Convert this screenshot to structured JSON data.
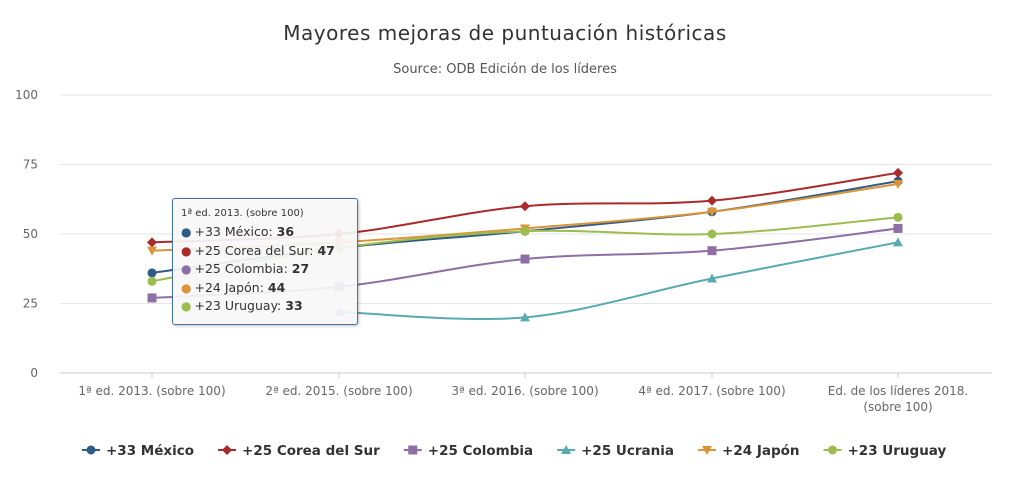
{
  "chart_data": {
    "type": "line",
    "title": "Mayores mejoras de puntuación históricas",
    "subtitle": "Source: ODB Edición de los líderes",
    "categories": [
      "1ª ed. 2013. (sobre 100)",
      "2ª ed. 2015. (sobre 100)",
      "3ª ed. 2016. (sobre 100)",
      "4ª ed. 2017. (sobre 100)",
      "Ed. de los líderes 2018. (sobre 100)"
    ],
    "category_lines": [
      [
        "1ª ed. 2013. (sobre 100)"
      ],
      [
        "2ª ed. 2015. (sobre 100)"
      ],
      [
        "3ª ed. 2016. (sobre 100)"
      ],
      [
        "4ª ed. 2017. (sobre 100)"
      ],
      [
        "Ed. de los líderes 2018.",
        "(sobre 100)"
      ]
    ],
    "ylim": [
      0,
      100
    ],
    "yticks": [
      "0",
      "25",
      "50",
      "75",
      "100"
    ],
    "legend_position": "bottom",
    "series": [
      {
        "name": "+33 México",
        "short": "México",
        "color": "#2f5b87",
        "marker": "circle",
        "values": [
          36,
          45,
          51,
          58,
          69
        ]
      },
      {
        "name": "+25 Corea del Sur",
        "short": "Corea del Sur",
        "color": "#a92b2b",
        "marker": "diamond",
        "values": [
          47,
          50,
          60,
          62,
          72
        ]
      },
      {
        "name": "+25 Colombia",
        "short": "Colombia",
        "color": "#8e6fa5",
        "marker": "square",
        "values": [
          27,
          31,
          41,
          44,
          52
        ]
      },
      {
        "name": "+25 Ucrania",
        "short": "Ucrania",
        "color": "#5aaab1",
        "marker": "triangle",
        "values": [
          null,
          22,
          20,
          34,
          47
        ]
      },
      {
        "name": "+24 Japón",
        "short": "Japón",
        "color": "#db9438",
        "marker": "triangle-down",
        "values": [
          44,
          47,
          52,
          58,
          68
        ]
      },
      {
        "name": "+23 Uruguay",
        "short": "Uruguay",
        "color": "#9bbd4e",
        "marker": "circle",
        "values": [
          33,
          45,
          51,
          50,
          56
        ]
      }
    ]
  },
  "tooltip": {
    "header": "1ª ed. 2013. (sobre 100)",
    "rows": [
      {
        "label": "+33 México: ",
        "value": "36",
        "color": "#2f5b87"
      },
      {
        "label": "+25 Corea del Sur: ",
        "value": "47",
        "color": "#a92b2b"
      },
      {
        "label": "+25 Colombia: ",
        "value": "27",
        "color": "#8e6fa5"
      },
      {
        "label": "+24 Japón: ",
        "value": "44",
        "color": "#db9438"
      },
      {
        "label": "+23 Uruguay: ",
        "value": "33",
        "color": "#9bbd4e"
      }
    ]
  }
}
